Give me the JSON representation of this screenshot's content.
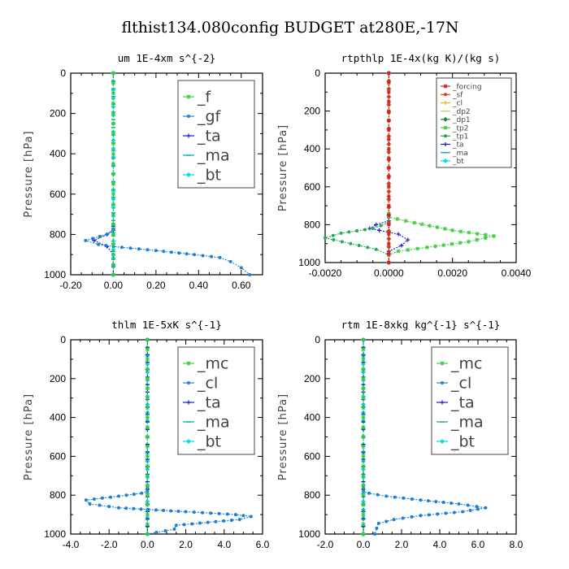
{
  "figure_title": "flthist134.080config  BUDGET at280E,-17N",
  "chart_data": [
    {
      "type": "line",
      "title": "um  1E-4xm s^{-2}",
      "ylabel": "Pressure [hPa]",
      "xlim": [
        -0.2,
        0.7
      ],
      "ylim": [
        1000,
        0
      ],
      "x_ticks": [
        "-0.20",
        "0.00",
        "0.20",
        "0.40",
        "0.60"
      ],
      "x_tick_values": [
        -0.2,
        0.0,
        0.2,
        0.4,
        0.6
      ],
      "y_ticks": [
        "0",
        "200",
        "400",
        "600",
        "800",
        "1000"
      ],
      "y_tick_values": [
        0,
        200,
        400,
        600,
        800,
        1000
      ],
      "legend_position": "top-right",
      "legend_size": "large",
      "series": [
        {
          "name": "_f",
          "color": "#33cc33",
          "x": [
            0,
            0,
            0,
            0,
            0,
            0,
            0,
            0,
            0,
            0,
            0,
            0
          ],
          "y": [
            0,
            100,
            200,
            300,
            400,
            500,
            600,
            700,
            800,
            900,
            950,
            1000
          ]
        },
        {
          "name": "_gf",
          "color": "#1a7fd9",
          "x": [
            0.0,
            0.0,
            -0.03,
            -0.13,
            -0.07,
            0.0,
            0.2,
            0.38,
            0.5,
            0.55,
            0.6,
            0.64
          ],
          "y": [
            750,
            775,
            800,
            830,
            850,
            860,
            880,
            900,
            915,
            935,
            965,
            1000
          ]
        },
        {
          "name": "_ta",
          "color": "#1a1acc",
          "x": [
            0,
            0,
            -0.03,
            -0.09,
            -0.03,
            0,
            0
          ],
          "y": [
            760,
            780,
            800,
            830,
            860,
            900,
            1000
          ]
        },
        {
          "name": "_ma",
          "color": "#00aaaa",
          "x": [
            0,
            0,
            0
          ],
          "y": [
            0,
            500,
            1000
          ]
        },
        {
          "name": "_bt",
          "color": "#00ddee",
          "x": [
            0,
            0,
            0,
            0,
            0
          ],
          "y": [
            0,
            250,
            500,
            750,
            1000
          ]
        }
      ]
    },
    {
      "type": "line",
      "title": "rtpthlp  1E-4x(kg K)/(kg s)",
      "ylabel": "Pressure [hPa]",
      "xlim": [
        -0.002,
        0.004
      ],
      "ylim": [
        1000,
        0
      ],
      "x_ticks": [
        "-0.0020",
        "0.0000",
        "0.0020",
        "0.0040"
      ],
      "x_tick_values": [
        -0.002,
        0.0,
        0.002,
        0.004
      ],
      "y_ticks": [
        "0",
        "200",
        "400",
        "600",
        "800",
        "1000"
      ],
      "y_tick_values": [
        0,
        200,
        400,
        600,
        800,
        1000
      ],
      "legend_position": "top-right",
      "legend_size": "small",
      "series": [
        {
          "name": "_forcing",
          "color": "#cc2222",
          "x": [
            0,
            0,
            0,
            0,
            0,
            0,
            0,
            0,
            0,
            0,
            0
          ],
          "y": [
            0,
            100,
            200,
            300,
            400,
            500,
            600,
            700,
            800,
            900,
            1000
          ]
        },
        {
          "name": "_sf",
          "color": "#ee3322",
          "x": [
            0,
            0,
            0
          ],
          "y": [
            0,
            500,
            1000
          ]
        },
        {
          "name": "_cl",
          "color": "#ddbb22",
          "x": [
            0,
            0,
            0
          ],
          "y": [
            0,
            500,
            1000
          ]
        },
        {
          "name": "_dp2",
          "color": "#ddcc55",
          "x": [
            0,
            0,
            0
          ],
          "y": [
            0,
            500,
            1000
          ]
        },
        {
          "name": "_dp1",
          "color": "#228833",
          "x": [
            0,
            0,
            0
          ],
          "y": [
            0,
            500,
            1000
          ]
        },
        {
          "name": "_tp2",
          "color": "#44cc44",
          "x": [
            0.0,
            0.0,
            0.0008,
            0.002,
            0.0033,
            0.0025,
            0.0012,
            0.0003,
            0.0
          ],
          "y": [
            740,
            760,
            790,
            830,
            860,
            890,
            920,
            940,
            960
          ]
        },
        {
          "name": "_tp1",
          "color": "#22aa55",
          "x": [
            0.0,
            0.0,
            -0.0005,
            -0.0015,
            -0.002,
            -0.0012,
            -0.0004,
            0.0
          ],
          "y": [
            760,
            790,
            820,
            845,
            870,
            900,
            930,
            960
          ]
        },
        {
          "name": "_ta",
          "color": "#1a1acc",
          "x": [
            0,
            -0.0004,
            -0.0006,
            0.0003,
            0.0006,
            0.0004,
            0
          ],
          "y": [
            780,
            800,
            820,
            850,
            880,
            910,
            940
          ]
        },
        {
          "name": "_ma",
          "color": "#00aaaa",
          "x": [
            0,
            0,
            0
          ],
          "y": [
            0,
            500,
            1000
          ]
        },
        {
          "name": "_bt",
          "color": "#00ddee",
          "x": [
            0,
            0,
            0
          ],
          "y": [
            0,
            500,
            1000
          ]
        }
      ]
    },
    {
      "type": "line",
      "title": "thlm  1E-5xK s^{-1}",
      "ylabel": "Pressure [hPa]",
      "xlim": [
        -4.0,
        6.0
      ],
      "ylim": [
        1000,
        0
      ],
      "x_ticks": [
        "-4.0",
        "-2.0",
        "0.0",
        "2.0",
        "4.0",
        "6.0"
      ],
      "x_tick_values": [
        -4,
        -2,
        0,
        2,
        4,
        6
      ],
      "y_ticks": [
        "0",
        "200",
        "400",
        "600",
        "800",
        "1000"
      ],
      "y_tick_values": [
        0,
        200,
        400,
        600,
        800,
        1000
      ],
      "legend_position": "top-right",
      "legend_size": "large",
      "series": [
        {
          "name": "_mc",
          "color": "#33cc33",
          "x": [
            0,
            0,
            0,
            0,
            0,
            0,
            0,
            0,
            0,
            0,
            0
          ],
          "y": [
            0,
            100,
            200,
            300,
            400,
            500,
            600,
            700,
            800,
            900,
            1000
          ]
        },
        {
          "name": "_cl",
          "color": "#1a7fd9",
          "x": [
            0.0,
            0.0,
            -0.3,
            -1.5,
            -3.2,
            -3.0,
            -1.5,
            2.0,
            4.6,
            5.4,
            4.8,
            1.5,
            1.4,
            0.0
          ],
          "y": [
            760,
            780,
            790,
            805,
            825,
            845,
            865,
            885,
            900,
            910,
            925,
            955,
            975,
            1000
          ]
        },
        {
          "name": "_ta",
          "color": "#1a1acc",
          "x": [
            0,
            0,
            0
          ],
          "y": [
            0,
            500,
            1000
          ]
        },
        {
          "name": "_ma",
          "color": "#00aaaa",
          "x": [
            0,
            0,
            0
          ],
          "y": [
            0,
            500,
            1000
          ]
        },
        {
          "name": "_bt",
          "color": "#00ddee",
          "x": [
            0,
            0,
            0,
            0,
            0
          ],
          "y": [
            0,
            250,
            500,
            750,
            1000
          ]
        }
      ]
    },
    {
      "type": "line",
      "title": "rtm  1E-8xkg kg^{-1} s^{-1}",
      "ylabel": "Pressure [hPa]",
      "xlim": [
        -2.0,
        8.0
      ],
      "ylim": [
        1000,
        0
      ],
      "x_ticks": [
        "-2.0",
        "0.0",
        "2.0",
        "4.0",
        "6.0",
        "8.0"
      ],
      "x_tick_values": [
        -2,
        0,
        2,
        4,
        6,
        8
      ],
      "y_ticks": [
        "0",
        "200",
        "400",
        "600",
        "800",
        "1000"
      ],
      "y_tick_values": [
        0,
        200,
        400,
        600,
        800,
        1000
      ],
      "legend_position": "top-right",
      "legend_size": "large",
      "series": [
        {
          "name": "_mc",
          "color": "#33cc33",
          "x": [
            0,
            0,
            0,
            0,
            0,
            0,
            0,
            0,
            0,
            0,
            0
          ],
          "y": [
            0,
            100,
            200,
            300,
            400,
            500,
            600,
            700,
            800,
            900,
            1000
          ]
        },
        {
          "name": "_cl",
          "color": "#1a7fd9",
          "x": [
            0.0,
            0.0,
            0.3,
            1.2,
            3.0,
            5.0,
            6.4,
            5.2,
            3.0,
            1.6,
            0.8,
            0.7,
            0.6
          ],
          "y": [
            760,
            780,
            790,
            805,
            825,
            845,
            865,
            885,
            905,
            925,
            945,
            970,
            1000
          ]
        },
        {
          "name": "_ta",
          "color": "#1a1acc",
          "x": [
            0,
            0,
            0
          ],
          "y": [
            0,
            500,
            1000
          ]
        },
        {
          "name": "_ma",
          "color": "#00aaaa",
          "x": [
            0,
            0,
            0
          ],
          "y": [
            0,
            500,
            1000
          ]
        },
        {
          "name": "_bt",
          "color": "#00ddee",
          "x": [
            0,
            0,
            0,
            0,
            0
          ],
          "y": [
            0,
            250,
            500,
            750,
            1000
          ]
        }
      ]
    }
  ]
}
